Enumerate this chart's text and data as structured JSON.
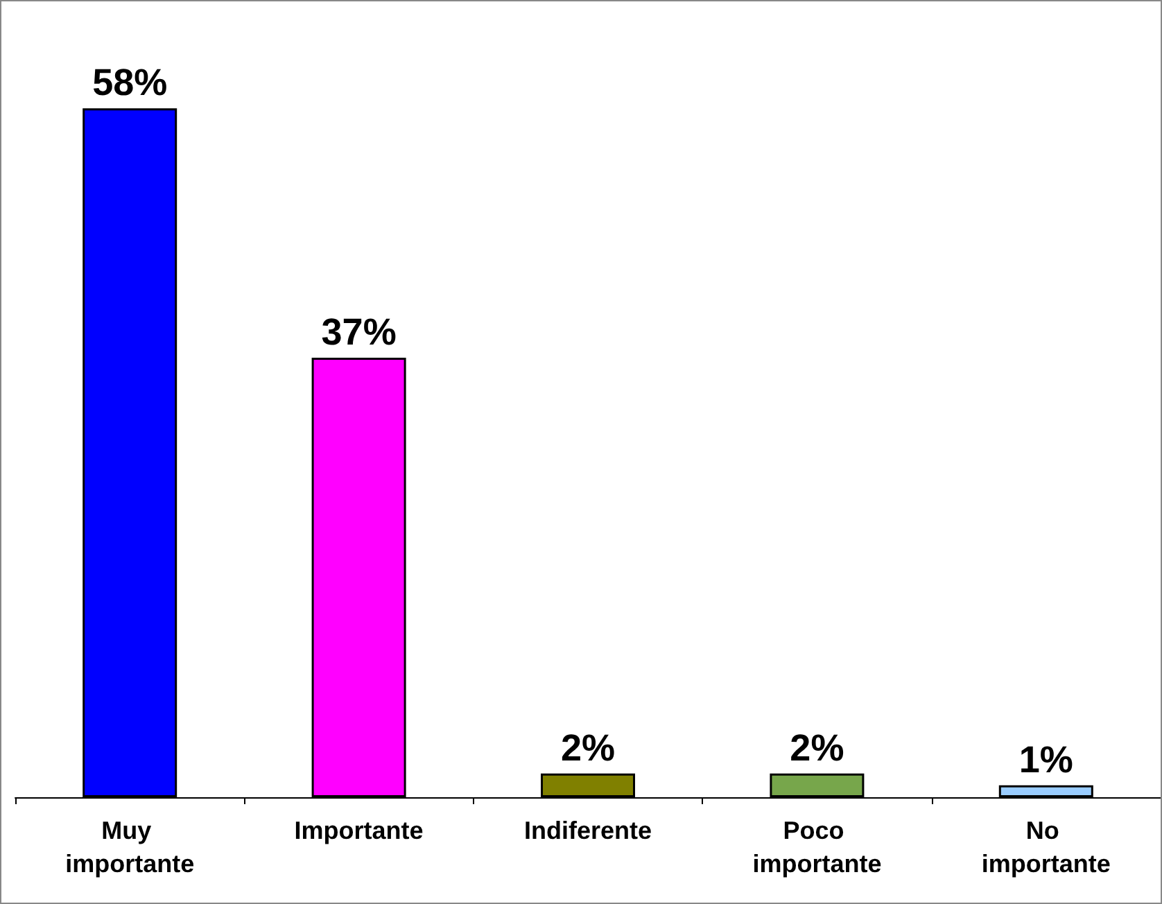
{
  "chart_data": {
    "type": "bar",
    "categories": [
      "Muy importante",
      "Importante",
      "Indiferente",
      "Poco importante",
      "No importante"
    ],
    "values": [
      58,
      37,
      2,
      2,
      1
    ],
    "value_labels": [
      "58%",
      "37%",
      "2%",
      "2%",
      "1%"
    ],
    "colors": [
      "#0000ff",
      "#ff00ff",
      "#808000",
      "#77a64b",
      "#99ccff"
    ]
  }
}
